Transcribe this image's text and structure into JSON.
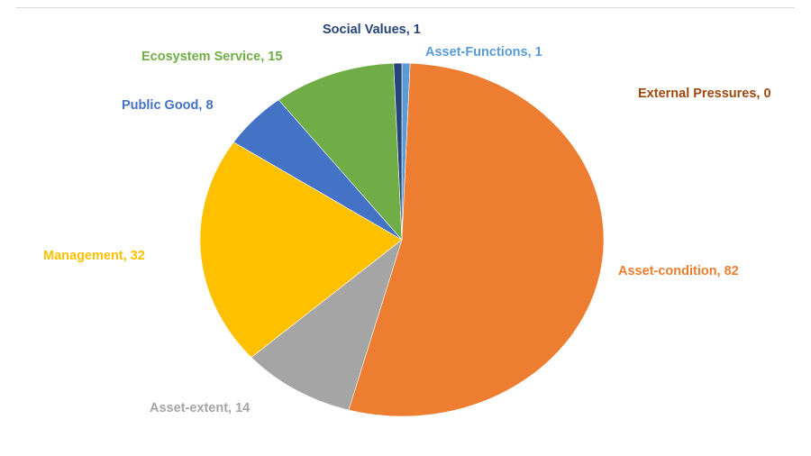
{
  "chart_data": {
    "type": "pie",
    "title": "",
    "start_angle_deg": 0,
    "direction": "clockwise",
    "label_format": "{category}, {value}",
    "slices": [
      {
        "category": "Asset-Functions",
        "value": 1,
        "color": "#5b9bd5",
        "label_color": "#5b9bd5"
      },
      {
        "category": "Asset-condition",
        "value": 82,
        "color": "#ed7d31",
        "label_color": "#ed7d31"
      },
      {
        "category": "Asset-extent",
        "value": 14,
        "color": "#a5a5a5",
        "label_color": "#a5a5a5"
      },
      {
        "category": "Management",
        "value": 32,
        "color": "#ffc000",
        "label_color": "#ffc000"
      },
      {
        "category": "Public Good",
        "value": 8,
        "color": "#4472c4",
        "label_color": "#4472c4"
      },
      {
        "category": "Ecosystem Service",
        "value": 15,
        "color": "#70ad47",
        "label_color": "#70ad47"
      },
      {
        "category": "Social Values",
        "value": 1,
        "color": "#264478",
        "label_color": "#264478"
      },
      {
        "category": "External Pressures",
        "value": 0,
        "color": "#9e480e",
        "label_color": "#9e480e"
      }
    ]
  }
}
